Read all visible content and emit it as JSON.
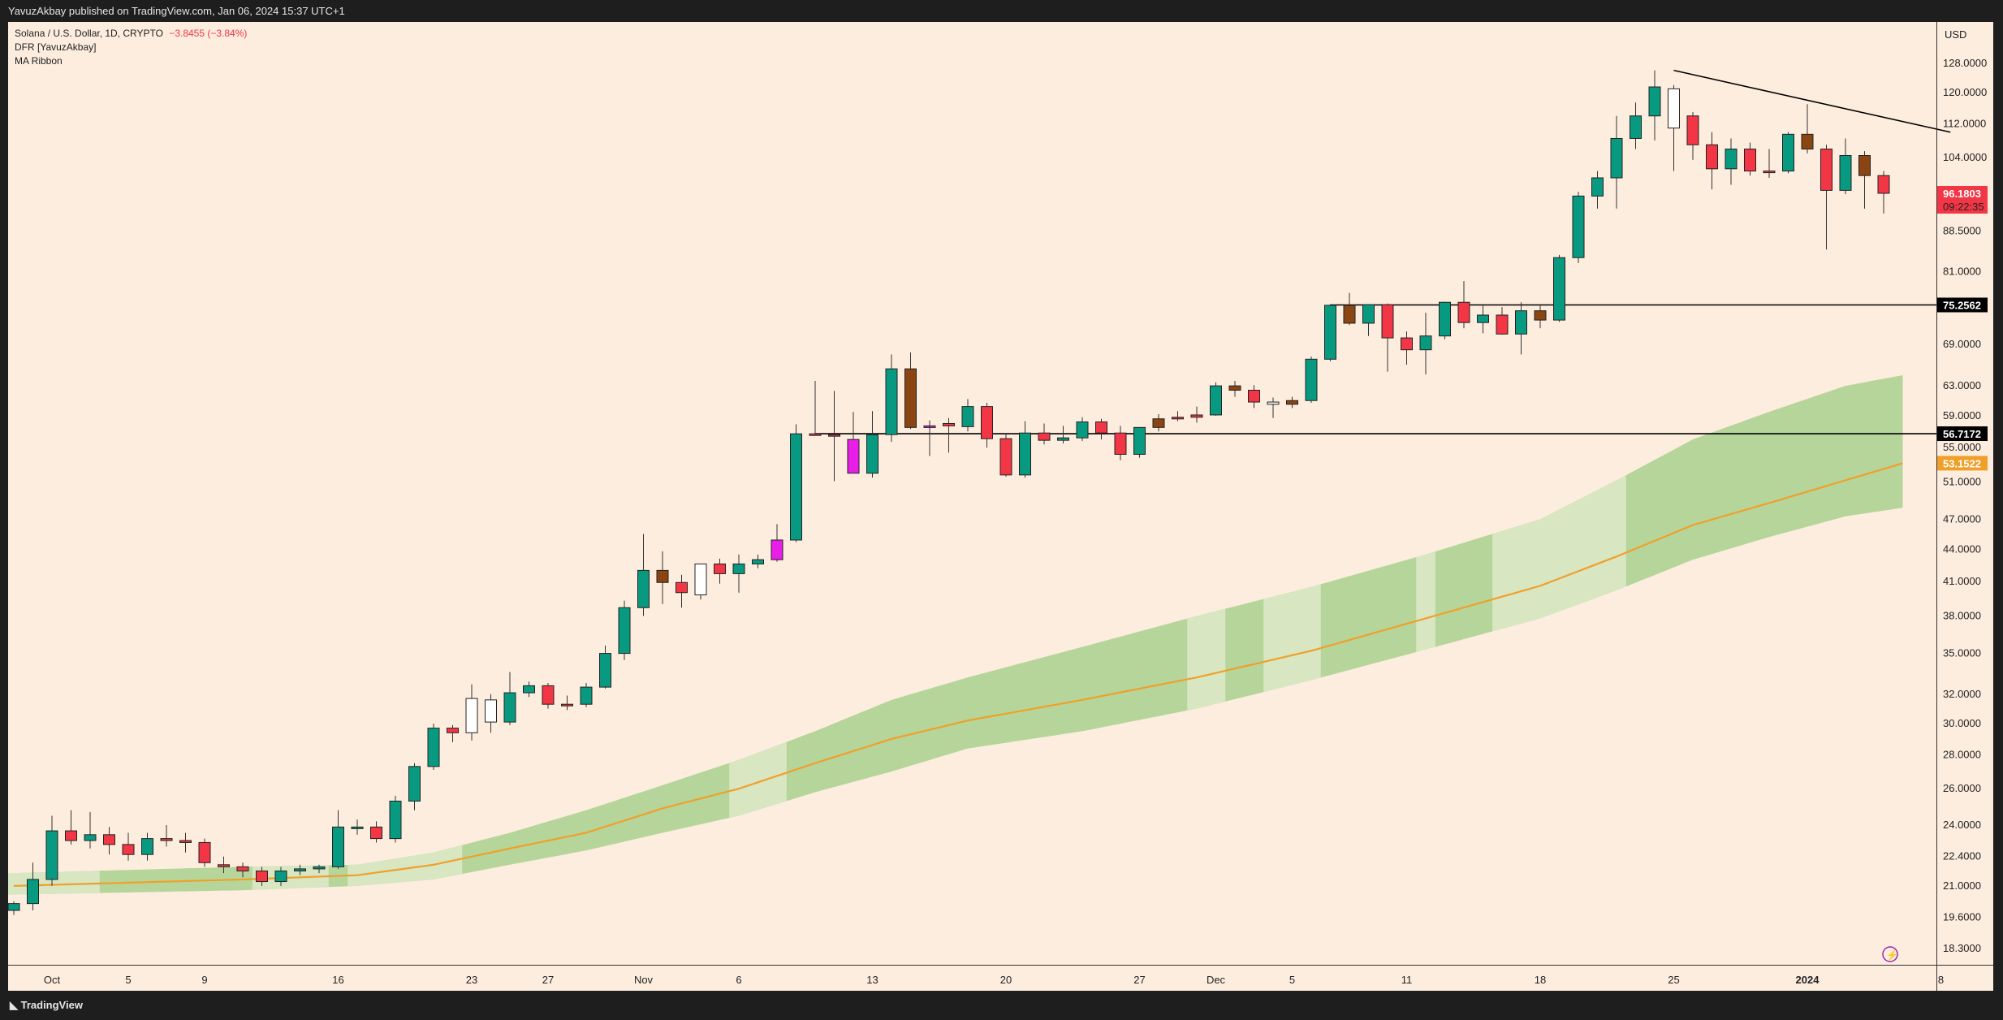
{
  "header": {
    "published": "YavuzAkbay published on TradingView.com, Jan 06, 2024 15:37 UTC+1"
  },
  "legend": {
    "symbol": "Solana / U.S. Dollar, 1D, CRYPTO",
    "change": "−3.8455 (−3.84%)",
    "indicator1": "DFR [YavuzAkbay]",
    "indicator2": "MA Ribbon"
  },
  "footer": {
    "brand": "TradingView"
  },
  "currency": "USD",
  "colors": {
    "background": "#fdedde",
    "up": "#089981",
    "down": "#f23645",
    "ma": "#f0a02a",
    "ribbon_dark": "#a9d08e",
    "ribbon_light": "#d8e6c2"
  },
  "chart_data": {
    "type": "candlestick",
    "title": "Solana / U.S. Dollar, 1D, CRYPTO",
    "y_scale": "log",
    "ylim": [
      17.5,
      135
    ],
    "y_ticks": [
      "128.0000",
      "120.0000",
      "112.0000",
      "104.0000",
      "88.5000",
      "81.0000",
      "69.0000",
      "63.0000",
      "59.0000",
      "55.0000",
      "51.0000",
      "47.0000",
      "44.0000",
      "41.0000",
      "38.0000",
      "35.0000",
      "32.0000",
      "30.0000",
      "28.0000",
      "26.0000",
      "24.0000",
      "22.4000",
      "21.0000",
      "19.6000",
      "18.3000"
    ],
    "x_ticks": [
      {
        "label": "Oct",
        "i": 2
      },
      {
        "label": "5",
        "i": 6
      },
      {
        "label": "9",
        "i": 10
      },
      {
        "label": "16",
        "i": 17
      },
      {
        "label": "23",
        "i": 24
      },
      {
        "label": "27",
        "i": 28
      },
      {
        "label": "Nov",
        "i": 33
      },
      {
        "label": "6",
        "i": 38
      },
      {
        "label": "13",
        "i": 45
      },
      {
        "label": "20",
        "i": 52
      },
      {
        "label": "27",
        "i": 59
      },
      {
        "label": "Dec",
        "i": 63
      },
      {
        "label": "5",
        "i": 67
      },
      {
        "label": "11",
        "i": 73
      },
      {
        "label": "18",
        "i": 80
      },
      {
        "label": "25",
        "i": 87
      },
      {
        "label": "2024",
        "i": 94
      },
      {
        "label": "8",
        "i": 101
      }
    ],
    "candles": [
      {
        "o": 19.9,
        "h": 20.3,
        "l": 19.7,
        "c": 20.2,
        "s": "up"
      },
      {
        "o": 20.2,
        "h": 22.1,
        "l": 19.9,
        "c": 21.3,
        "s": "up"
      },
      {
        "o": 21.3,
        "h": 24.5,
        "l": 21.0,
        "c": 23.7,
        "s": "up"
      },
      {
        "o": 23.7,
        "h": 24.8,
        "l": 23.0,
        "c": 23.2,
        "s": "down"
      },
      {
        "o": 23.2,
        "h": 24.7,
        "l": 22.8,
        "c": 23.5,
        "s": "up"
      },
      {
        "o": 23.5,
        "h": 23.9,
        "l": 22.5,
        "c": 23.0,
        "s": "down"
      },
      {
        "o": 23.0,
        "h": 23.6,
        "l": 22.2,
        "c": 22.5,
        "s": "down"
      },
      {
        "o": 22.5,
        "h": 23.6,
        "l": 22.2,
        "c": 23.3,
        "s": "up"
      },
      {
        "o": 23.3,
        "h": 24.0,
        "l": 22.9,
        "c": 23.2,
        "s": "down"
      },
      {
        "o": 23.2,
        "h": 23.6,
        "l": 22.6,
        "c": 23.1,
        "s": "down"
      },
      {
        "o": 23.1,
        "h": 23.3,
        "l": 21.9,
        "c": 22.1,
        "s": "down"
      },
      {
        "o": 22.0,
        "h": 22.4,
        "l": 21.6,
        "c": 21.9,
        "s": "down"
      },
      {
        "o": 21.9,
        "h": 22.1,
        "l": 21.4,
        "c": 21.7,
        "s": "down"
      },
      {
        "o": 21.7,
        "h": 21.9,
        "l": 21.0,
        "c": 21.2,
        "s": "down"
      },
      {
        "o": 21.2,
        "h": 21.9,
        "l": 21.0,
        "c": 21.7,
        "s": "up"
      },
      {
        "o": 21.7,
        "h": 22.0,
        "l": 21.5,
        "c": 21.8,
        "s": "up"
      },
      {
        "o": 21.8,
        "h": 22.0,
        "l": 21.6,
        "c": 21.9,
        "s": "up"
      },
      {
        "o": 21.9,
        "h": 24.8,
        "l": 21.8,
        "c": 23.9,
        "s": "up"
      },
      {
        "o": 23.9,
        "h": 24.3,
        "l": 23.5,
        "c": 23.9,
        "s": "up"
      },
      {
        "o": 23.9,
        "h": 24.2,
        "l": 23.1,
        "c": 23.3,
        "s": "down"
      },
      {
        "o": 23.3,
        "h": 25.6,
        "l": 23.1,
        "c": 25.3,
        "s": "up"
      },
      {
        "o": 25.3,
        "h": 27.5,
        "l": 24.8,
        "c": 27.3,
        "s": "up"
      },
      {
        "o": 27.3,
        "h": 30.0,
        "l": 27.1,
        "c": 29.7,
        "s": "up"
      },
      {
        "o": 29.7,
        "h": 29.9,
        "l": 28.8,
        "c": 29.4,
        "s": "down"
      },
      {
        "o": 29.4,
        "h": 32.7,
        "l": 28.9,
        "c": 31.7,
        "s": "white"
      },
      {
        "o": 30.1,
        "h": 32.0,
        "l": 29.4,
        "c": 31.6,
        "s": "white"
      },
      {
        "o": 30.1,
        "h": 33.6,
        "l": 29.9,
        "c": 32.1,
        "s": "up"
      },
      {
        "o": 32.1,
        "h": 32.9,
        "l": 31.8,
        "c": 32.6,
        "s": "up"
      },
      {
        "o": 32.6,
        "h": 32.8,
        "l": 31.0,
        "c": 31.3,
        "s": "down"
      },
      {
        "o": 31.3,
        "h": 31.9,
        "l": 30.9,
        "c": 31.3,
        "s": "down"
      },
      {
        "o": 31.3,
        "h": 32.8,
        "l": 31.1,
        "c": 32.5,
        "s": "up"
      },
      {
        "o": 32.5,
        "h": 35.6,
        "l": 32.4,
        "c": 35.0,
        "s": "up"
      },
      {
        "o": 35.0,
        "h": 39.3,
        "l": 34.5,
        "c": 38.7,
        "s": "up"
      },
      {
        "o": 38.7,
        "h": 45.5,
        "l": 38.0,
        "c": 42.0,
        "s": "up"
      },
      {
        "o": 42.0,
        "h": 43.8,
        "l": 39.0,
        "c": 40.9,
        "s": "brown"
      },
      {
        "o": 40.9,
        "h": 41.6,
        "l": 38.7,
        "c": 40.0,
        "s": "down"
      },
      {
        "o": 39.8,
        "h": 42.6,
        "l": 39.4,
        "c": 42.6,
        "s": "white"
      },
      {
        "o": 42.6,
        "h": 43.1,
        "l": 40.8,
        "c": 41.7,
        "s": "down"
      },
      {
        "o": 41.7,
        "h": 43.5,
        "l": 40.0,
        "c": 42.6,
        "s": "up"
      },
      {
        "o": 42.6,
        "h": 43.5,
        "l": 42.2,
        "c": 43.0,
        "s": "up"
      },
      {
        "o": 43.0,
        "h": 46.5,
        "l": 42.8,
        "c": 44.9,
        "s": "magenta"
      },
      {
        "o": 44.9,
        "h": 57.9,
        "l": 44.7,
        "c": 56.7,
        "s": "up"
      },
      {
        "o": 56.7,
        "h": 63.7,
        "l": 56.5,
        "c": 56.6,
        "s": "down"
      },
      {
        "o": 56.6,
        "h": 62.3,
        "l": 51.1,
        "c": 56.5,
        "s": "down"
      },
      {
        "o": 56.0,
        "h": 59.5,
        "l": 52.0,
        "c": 52.0,
        "s": "magenta"
      },
      {
        "o": 52.0,
        "h": 59.6,
        "l": 51.5,
        "c": 56.6,
        "s": "up"
      },
      {
        "o": 56.6,
        "h": 67.5,
        "l": 55.7,
        "c": 65.4,
        "s": "up"
      },
      {
        "o": 65.4,
        "h": 67.8,
        "l": 57.3,
        "c": 57.5,
        "s": "brown"
      },
      {
        "o": 57.5,
        "h": 58.4,
        "l": 54.0,
        "c": 57.7,
        "s": "magenta"
      },
      {
        "o": 57.7,
        "h": 58.7,
        "l": 54.4,
        "c": 58.0,
        "s": "down"
      },
      {
        "o": 57.6,
        "h": 61.2,
        "l": 57.0,
        "c": 60.2,
        "s": "up"
      },
      {
        "o": 60.2,
        "h": 60.7,
        "l": 55.0,
        "c": 56.1,
        "s": "down"
      },
      {
        "o": 56.1,
        "h": 56.8,
        "l": 51.6,
        "c": 51.8,
        "s": "down"
      },
      {
        "o": 51.8,
        "h": 58.3,
        "l": 51.5,
        "c": 56.8,
        "s": "up"
      },
      {
        "o": 56.8,
        "h": 58.0,
        "l": 55.4,
        "c": 55.9,
        "s": "down"
      },
      {
        "o": 55.9,
        "h": 57.7,
        "l": 55.5,
        "c": 56.2,
        "s": "up"
      },
      {
        "o": 56.2,
        "h": 58.8,
        "l": 55.8,
        "c": 58.2,
        "s": "up"
      },
      {
        "o": 58.2,
        "h": 58.6,
        "l": 56.0,
        "c": 56.8,
        "s": "down"
      },
      {
        "o": 56.8,
        "h": 57.7,
        "l": 53.5,
        "c": 54.2,
        "s": "down"
      },
      {
        "o": 54.2,
        "h": 57.5,
        "l": 53.8,
        "c": 57.5,
        "s": "up"
      },
      {
        "o": 57.5,
        "h": 59.2,
        "l": 57.0,
        "c": 58.6,
        "s": "brown"
      },
      {
        "o": 58.6,
        "h": 59.6,
        "l": 58.3,
        "c": 58.8,
        "s": "down"
      },
      {
        "o": 58.8,
        "h": 60.2,
        "l": 58.1,
        "c": 59.1,
        "s": "down"
      },
      {
        "o": 59.1,
        "h": 63.5,
        "l": 59.0,
        "c": 63.0,
        "s": "up"
      },
      {
        "o": 63.0,
        "h": 63.7,
        "l": 61.5,
        "c": 62.4,
        "s": "brown"
      },
      {
        "o": 62.4,
        "h": 63.1,
        "l": 60.0,
        "c": 60.8,
        "s": "down"
      },
      {
        "o": 60.8,
        "h": 61.4,
        "l": 58.7,
        "c": 60.5,
        "s": "white"
      },
      {
        "o": 60.5,
        "h": 61.5,
        "l": 60.0,
        "c": 61.0,
        "s": "brown"
      },
      {
        "o": 61.0,
        "h": 67.2,
        "l": 60.7,
        "c": 66.8,
        "s": "up"
      },
      {
        "o": 66.8,
        "h": 75.4,
        "l": 66.5,
        "c": 75.2,
        "s": "up"
      },
      {
        "o": 75.2,
        "h": 77.3,
        "l": 72.0,
        "c": 72.3,
        "s": "brown"
      },
      {
        "o": 72.3,
        "h": 75.3,
        "l": 70.3,
        "c": 75.3,
        "s": "up"
      },
      {
        "o": 75.3,
        "h": 75.5,
        "l": 65.0,
        "c": 70.0,
        "s": "down"
      },
      {
        "o": 70.0,
        "h": 71.0,
        "l": 66.0,
        "c": 68.2,
        "s": "down"
      },
      {
        "o": 68.2,
        "h": 74.0,
        "l": 64.6,
        "c": 70.3,
        "s": "up"
      },
      {
        "o": 70.3,
        "h": 75.8,
        "l": 69.8,
        "c": 75.7,
        "s": "up"
      },
      {
        "o": 75.7,
        "h": 79.3,
        "l": 71.5,
        "c": 72.4,
        "s": "down"
      },
      {
        "o": 72.4,
        "h": 75.4,
        "l": 70.7,
        "c": 73.6,
        "s": "up"
      },
      {
        "o": 73.6,
        "h": 74.9,
        "l": 70.5,
        "c": 70.6,
        "s": "down"
      },
      {
        "o": 70.6,
        "h": 75.7,
        "l": 67.5,
        "c": 74.3,
        "s": "up"
      },
      {
        "o": 74.3,
        "h": 75.4,
        "l": 71.5,
        "c": 72.8,
        "s": "brown"
      },
      {
        "o": 72.8,
        "h": 84.0,
        "l": 72.5,
        "c": 83.5,
        "s": "up"
      },
      {
        "o": 83.5,
        "h": 96.5,
        "l": 82.5,
        "c": 95.6,
        "s": "up"
      },
      {
        "o": 95.6,
        "h": 101.0,
        "l": 93.0,
        "c": 99.5,
        "s": "up"
      },
      {
        "o": 99.5,
        "h": 114.0,
        "l": 93.0,
        "c": 108.5,
        "s": "up"
      },
      {
        "o": 108.5,
        "h": 117.4,
        "l": 106.0,
        "c": 114.0,
        "s": "up"
      },
      {
        "o": 114.0,
        "h": 126.0,
        "l": 108.0,
        "c": 121.5,
        "s": "up"
      },
      {
        "o": 111.0,
        "h": 122.0,
        "l": 101.0,
        "c": 121.0,
        "s": "white"
      },
      {
        "o": 114.0,
        "h": 115.0,
        "l": 103.5,
        "c": 107.0,
        "s": "down"
      },
      {
        "o": 107.0,
        "h": 110.0,
        "l": 97.0,
        "c": 101.5,
        "s": "down"
      },
      {
        "o": 101.5,
        "h": 108.5,
        "l": 98.0,
        "c": 106.0,
        "s": "up"
      },
      {
        "o": 106.0,
        "h": 107.5,
        "l": 100.0,
        "c": 101.0,
        "s": "down"
      },
      {
        "o": 101.0,
        "h": 106.0,
        "l": 99.5,
        "c": 101.0,
        "s": "down"
      },
      {
        "o": 101.0,
        "h": 110.0,
        "l": 100.5,
        "c": 109.5,
        "s": "up"
      },
      {
        "o": 109.5,
        "h": 117.0,
        "l": 105.0,
        "c": 106.0,
        "s": "brown"
      },
      {
        "o": 106.0,
        "h": 107.0,
        "l": 85.0,
        "c": 96.8,
        "s": "down"
      },
      {
        "o": 96.8,
        "h": 108.5,
        "l": 96.0,
        "c": 104.5,
        "s": "up"
      },
      {
        "o": 104.5,
        "h": 105.5,
        "l": 93.0,
        "c": 100.0,
        "s": "brown"
      },
      {
        "o": 100.0,
        "h": 101.0,
        "l": 92.0,
        "c": 96.18,
        "s": "down"
      }
    ],
    "ma_line": [
      {
        "i": 0,
        "v": 21.0
      },
      {
        "i": 12,
        "v": 21.3
      },
      {
        "i": 18,
        "v": 21.5
      },
      {
        "i": 22,
        "v": 22.0
      },
      {
        "i": 26,
        "v": 22.8
      },
      {
        "i": 30,
        "v": 23.6
      },
      {
        "i": 34,
        "v": 24.9
      },
      {
        "i": 38,
        "v": 26.0
      },
      {
        "i": 42,
        "v": 27.5
      },
      {
        "i": 46,
        "v": 29.0
      },
      {
        "i": 50,
        "v": 30.2
      },
      {
        "i": 56,
        "v": 31.6
      },
      {
        "i": 62,
        "v": 33.2
      },
      {
        "i": 68,
        "v": 35.2
      },
      {
        "i": 74,
        "v": 37.8
      },
      {
        "i": 80,
        "v": 40.6
      },
      {
        "i": 84,
        "v": 43.3
      },
      {
        "i": 88,
        "v": 46.4
      },
      {
        "i": 92,
        "v": 48.7
      },
      {
        "i": 96,
        "v": 51.2
      },
      {
        "i": 99,
        "v": 53.15
      }
    ],
    "ribbon_upper": [
      {
        "i": 0,
        "v": 21.6
      },
      {
        "i": 12,
        "v": 21.9
      },
      {
        "i": 18,
        "v": 22.0
      },
      {
        "i": 22,
        "v": 22.6
      },
      {
        "i": 26,
        "v": 23.6
      },
      {
        "i": 30,
        "v": 24.8
      },
      {
        "i": 34,
        "v": 26.2
      },
      {
        "i": 38,
        "v": 27.7
      },
      {
        "i": 42,
        "v": 29.5
      },
      {
        "i": 46,
        "v": 31.6
      },
      {
        "i": 50,
        "v": 33.2
      },
      {
        "i": 56,
        "v": 35.5
      },
      {
        "i": 62,
        "v": 38.0
      },
      {
        "i": 68,
        "v": 40.5
      },
      {
        "i": 74,
        "v": 43.5
      },
      {
        "i": 80,
        "v": 47.0
      },
      {
        "i": 84,
        "v": 51.2
      },
      {
        "i": 88,
        "v": 56.0
      },
      {
        "i": 92,
        "v": 59.5
      },
      {
        "i": 96,
        "v": 63.0
      },
      {
        "i": 99,
        "v": 64.5
      }
    ],
    "ribbon_lower": [
      {
        "i": 0,
        "v": 20.6
      },
      {
        "i": 12,
        "v": 20.8
      },
      {
        "i": 18,
        "v": 21.0
      },
      {
        "i": 22,
        "v": 21.3
      },
      {
        "i": 26,
        "v": 22.0
      },
      {
        "i": 30,
        "v": 22.7
      },
      {
        "i": 34,
        "v": 23.6
      },
      {
        "i": 38,
        "v": 24.5
      },
      {
        "i": 42,
        "v": 25.8
      },
      {
        "i": 46,
        "v": 27.0
      },
      {
        "i": 50,
        "v": 28.4
      },
      {
        "i": 56,
        "v": 29.5
      },
      {
        "i": 62,
        "v": 31.0
      },
      {
        "i": 68,
        "v": 33.0
      },
      {
        "i": 74,
        "v": 35.3
      },
      {
        "i": 80,
        "v": 37.8
      },
      {
        "i": 84,
        "v": 40.2
      },
      {
        "i": 88,
        "v": 43.0
      },
      {
        "i": 92,
        "v": 45.2
      },
      {
        "i": 96,
        "v": 47.3
      },
      {
        "i": 99,
        "v": 48.2
      }
    ],
    "ribbon_light_ranges": [
      [
        0,
        4
      ],
      [
        13,
        16
      ],
      [
        18,
        23
      ],
      [
        35,
        34
      ],
      [
        38,
        40
      ],
      [
        62,
        63
      ],
      [
        66,
        68
      ],
      [
        74,
        74
      ],
      [
        78,
        84
      ]
    ],
    "lines": [
      {
        "type": "trend",
        "from": {
          "i": 87,
          "v": 126.0
        },
        "to": {
          "i": 101.5,
          "v": 110.0
        }
      },
      {
        "type": "hline",
        "i_start": 69,
        "v": 75.2562,
        "label": "75.2562"
      },
      {
        "type": "hline",
        "i_start": 42,
        "v": 56.7172,
        "label": "56.7172"
      }
    ],
    "price_tags": [
      {
        "v": 96.1803,
        "label": "96.1803",
        "sub": "09:22:35",
        "color": "#f23645"
      },
      {
        "v": 53.1522,
        "label": "53.1522",
        "color": "#f0a02a"
      }
    ]
  }
}
